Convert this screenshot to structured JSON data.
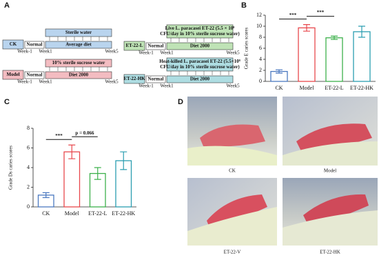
{
  "panel_labels": [
    "A",
    "B",
    "C",
    "D"
  ],
  "timeline": {
    "normal": "Normal",
    "weeks": [
      "Week-1",
      "Week1",
      "Week5"
    ],
    "groups": [
      {
        "label": "CK",
        "top": [
          "Sterile water"
        ],
        "bottom": "Average diet"
      },
      {
        "label": "Model",
        "top": [
          "10% sterile sucrose water"
        ],
        "bottom": "Diet 2000"
      },
      {
        "label": "ET-22-L",
        "top": [
          "Live L. paracasei ET-22 (5.5 × 10⁸",
          "CFU/day in 10% sterile sucrose water)"
        ],
        "bottom": "Diet 2000"
      },
      {
        "label": "ET-22-HK",
        "top": [
          "Heat-killed L. paracasei ET-22 (5.5×10⁸",
          "CFU/day in 10% sterile sucrose water)"
        ],
        "bottom": "Diet 2000"
      }
    ]
  },
  "chart_data": [
    {
      "type": "bar",
      "y_label": "Grade E caries scores",
      "categories": [
        "CK",
        "Model",
        "ET-22-L",
        "ET-22-HK"
      ],
      "values": [
        1.8,
        9.7,
        7.9,
        9.0
      ],
      "errors": [
        0.3,
        0.6,
        0.3,
        1.0
      ],
      "colors": [
        "#4a78c0",
        "#e8474c",
        "#3cb04a",
        "#2a9db0"
      ],
      "ylim": [
        0,
        12
      ],
      "yticks": [
        0,
        2,
        4,
        6,
        8,
        10,
        12
      ],
      "annotations": [
        "***",
        "***"
      ]
    },
    {
      "type": "bar",
      "y_label": "Grade Ds caries scores",
      "categories": [
        "CK",
        "Model",
        "ET-22-L",
        "ET-22-HK"
      ],
      "values": [
        1.2,
        5.6,
        3.4,
        4.7
      ],
      "errors": [
        0.25,
        0.7,
        0.6,
        0.9
      ],
      "colors": [
        "#4a78c0",
        "#e8474c",
        "#3cb04a",
        "#2a9db0"
      ],
      "ylim": [
        0,
        8
      ],
      "yticks": [
        0,
        2,
        4,
        6,
        8
      ],
      "annotations": [
        "***",
        "p = 0.066"
      ]
    }
  ],
  "photos": [
    "CK",
    "Model",
    "ET-22-V",
    "ET-22-HK"
  ]
}
